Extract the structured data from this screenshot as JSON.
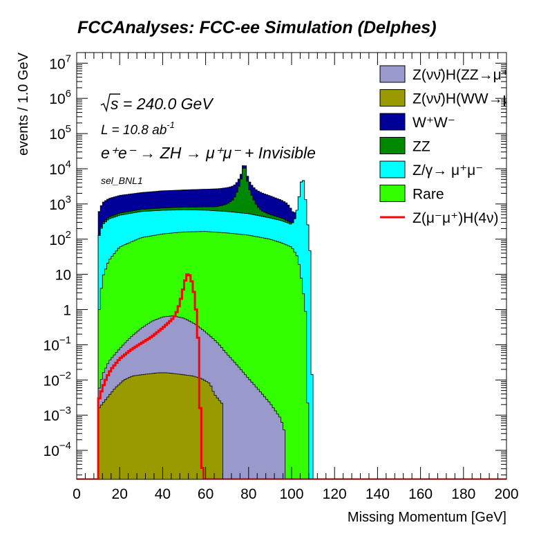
{
  "chart_data": {
    "type": "area",
    "title": "FCCAnalyses: FCC-ee Simulation (Delphes)",
    "xlabel": "Missing Momentum [GeV]",
    "ylabel": "events / 1.0 GeV",
    "xlim": [
      0,
      200
    ],
    "ylim_log": [
      1.5e-05,
      20000000.0
    ],
    "y_scale": "log",
    "stacked": true,
    "grid": false,
    "legend_position": "top-right",
    "x_ticks": [
      "0",
      "20",
      "40",
      "60",
      "80",
      "100",
      "120",
      "140",
      "160",
      "180",
      "200"
    ],
    "y_ticks": [
      {
        "v": 0.0001,
        "base": "10",
        "exp": "−4"
      },
      {
        "v": 0.001,
        "base": "10",
        "exp": "−3"
      },
      {
        "v": 0.01,
        "base": "10",
        "exp": "−2"
      },
      {
        "v": 0.1,
        "base": "10",
        "exp": "−1"
      },
      {
        "v": 1,
        "base": "1",
        "exp": ""
      },
      {
        "v": 10,
        "base": "10",
        "exp": ""
      },
      {
        "v": 100,
        "base": "10",
        "exp": "2"
      },
      {
        "v": 1000,
        "base": "10",
        "exp": "3"
      },
      {
        "v": 10000,
        "base": "10",
        "exp": "4"
      },
      {
        "v": 100000,
        "base": "10",
        "exp": "5"
      },
      {
        "v": 1000000,
        "base": "10",
        "exp": "6"
      },
      {
        "v": 10000000,
        "base": "10",
        "exp": "7"
      }
    ],
    "annotations": {
      "sqrts": "s = 240.0 GeV",
      "lumi_prefix": "L = 10.8 ab",
      "lumi_exp": "-1",
      "process": "e⁺e⁻ → ZH → μ⁺μ⁻ + Invisible",
      "selection": "sel_BNL1"
    },
    "stack_order": [
      "Z(νν̄)H(WW→μ⁺νμ⁻ν̄)",
      "Z(νν̄)H(ZZ→μ⁺μ⁻νν̄)",
      "Rare",
      "Z/γ→ μ⁺μ⁻",
      "ZZ",
      "W⁺W⁻"
    ],
    "series": [
      {
        "name": "Z(νν̄)H(ZZ→μ⁺μ⁻νν̄)",
        "label": "Z(νν̄)H(ZZ→μ⁺μ⁻νν̄)",
        "color": "#9999cc",
        "kind": "stack",
        "x": [
          10,
          12,
          15,
          20,
          25,
          30,
          35,
          40,
          45,
          50,
          55,
          60,
          65,
          70,
          75,
          80,
          85,
          90,
          95,
          97
        ],
        "y": [
          0.003,
          0.012,
          0.03,
          0.07,
          0.15,
          0.28,
          0.45,
          0.6,
          0.65,
          0.55,
          0.38,
          0.22,
          0.12,
          0.055,
          0.025,
          0.011,
          0.005,
          0.0022,
          0.0008,
          0.0003
        ]
      },
      {
        "name": "Z(νν̄)H(WW→μ⁺νμ⁻ν̄)",
        "label": "Z(νν̄)H(WW→μ⁺νμ⁻ν̄)",
        "color": "#999900",
        "kind": "stack",
        "x": [
          10,
          14,
          18,
          22,
          26,
          30,
          34,
          38,
          42,
          46,
          50,
          54,
          58,
          62,
          64,
          68
        ],
        "y": [
          0.0015,
          0.003,
          0.006,
          0.01,
          0.013,
          0.014,
          0.015,
          0.016,
          0.016,
          0.015,
          0.014,
          0.013,
          0.011,
          0.008,
          0.004,
          0.002
        ]
      },
      {
        "name": "Rare",
        "label": "Rare",
        "color": "#33ff00",
        "kind": "stack",
        "x": [
          10,
          12,
          15,
          20,
          30,
          40,
          50,
          60,
          70,
          80,
          90,
          95,
          100,
          103,
          105,
          107,
          108
        ],
        "y": [
          0.5,
          8,
          25,
          60,
          110,
          140,
          160,
          165,
          150,
          130,
          100,
          80,
          60,
          30,
          5,
          0.5,
          1e-05
        ]
      },
      {
        "name": "Z/γ→ μ⁺μ⁻",
        "label": "Z/γ→ μ⁺μ⁻",
        "color": "#00ffff",
        "kind": "stack",
        "x": [
          10,
          12,
          15,
          20,
          30,
          40,
          50,
          60,
          70,
          80,
          90,
          96,
          100,
          102,
          104,
          105,
          106,
          107,
          109,
          110
        ],
        "y": [
          100,
          250,
          350,
          420,
          500,
          520,
          520,
          500,
          460,
          400,
          300,
          250,
          200,
          400,
          2500,
          7000,
          3000,
          600,
          20,
          1e-05
        ]
      },
      {
        "name": "ZZ",
        "label": "ZZ",
        "color": "#008800",
        "kind": "stack",
        "x": [
          10,
          12,
          15,
          20,
          30,
          40,
          50,
          60,
          65,
          70,
          73,
          75,
          77,
          78,
          79,
          80,
          82,
          84,
          86,
          90,
          96,
          100
        ],
        "y": [
          0,
          30,
          50,
          70,
          90,
          110,
          130,
          160,
          200,
          400,
          800,
          2000,
          6000,
          16000,
          6000,
          2500,
          1000,
          400,
          200,
          100,
          60,
          30
        ]
      },
      {
        "name": "W⁺W⁻",
        "label": "W⁺W⁻",
        "color": "#000099",
        "kind": "stack",
        "x": [
          10,
          12,
          15,
          20,
          30,
          40,
          50,
          60,
          70,
          75,
          78,
          80,
          85,
          90,
          95,
          98,
          100,
          102
        ],
        "y": [
          400,
          800,
          1000,
          1200,
          1400,
          1600,
          1700,
          1800,
          1900,
          1900,
          1850,
          1700,
          1500,
          1200,
          900,
          700,
          400,
          150
        ]
      },
      {
        "name": "Z(μ⁻μ⁺)H(4ν̄)",
        "label": "Z(μ⁻μ⁺)H(4ν)",
        "color": "#ff0000",
        "kind": "line",
        "x": [
          10,
          10.5,
          12,
          14,
          16,
          20,
          25,
          30,
          35,
          40,
          44,
          46,
          48,
          50,
          51,
          52,
          53,
          54,
          55,
          56,
          57,
          58,
          59,
          60
        ],
        "y": [
          1e-05,
          0.003,
          0.006,
          0.012,
          0.02,
          0.04,
          0.07,
          0.11,
          0.17,
          0.3,
          0.5,
          0.7,
          1.5,
          5,
          9,
          11,
          8,
          5,
          2,
          0.5,
          0.05,
          5e-05,
          2e-05,
          1e-05
        ]
      }
    ],
    "legend_entries": [
      {
        "label": "Z(νν̄)H(ZZ→μ⁺μ⁻νν̄)",
        "color": "#9999cc",
        "kind": "box"
      },
      {
        "label": "Z(νν̄)H(WW→μ⁺νμ⁻ν̄)",
        "color": "#999900",
        "kind": "box"
      },
      {
        "label": "W⁺W⁻",
        "color": "#000099",
        "kind": "box"
      },
      {
        "label": "ZZ",
        "color": "#008800",
        "kind": "box"
      },
      {
        "label": "Z/γ→ μ⁺μ⁻",
        "color": "#00ffff",
        "kind": "box"
      },
      {
        "label": "Rare",
        "color": "#33ff00",
        "kind": "box"
      },
      {
        "label": "Z(μ⁻μ⁺)H(4ν)",
        "color": "#ff0000",
        "kind": "line"
      }
    ]
  }
}
